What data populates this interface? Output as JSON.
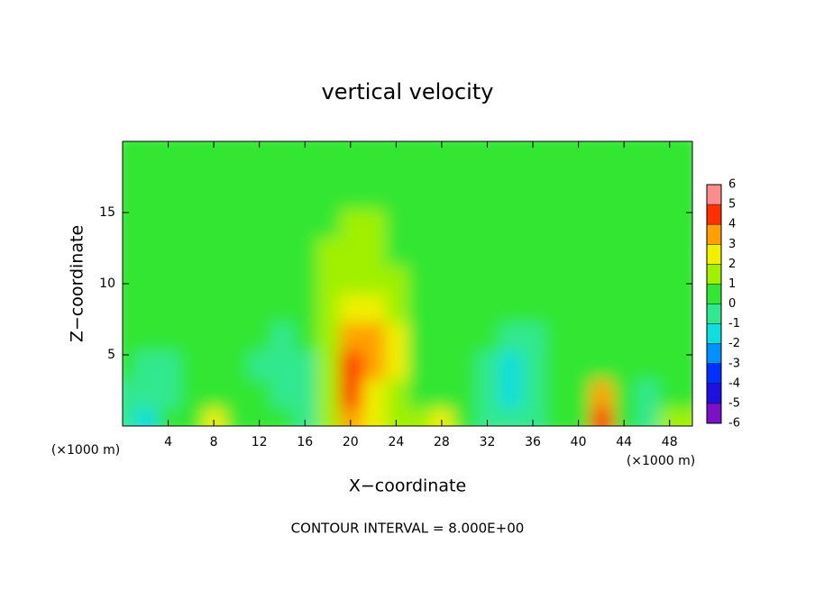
{
  "chart_data": {
    "type": "contour",
    "title": "vertical velocity",
    "xlabel": "X−coordinate",
    "ylabel": "Z−coordinate",
    "x_unit": "(×1000 m)",
    "x_unit_right": "(×1000 m)",
    "footer": "CONTOUR INTERVAL = 8.000E+00",
    "xlim": [
      0,
      50
    ],
    "ylim": [
      0,
      20
    ],
    "xticks": [
      4,
      8,
      12,
      16,
      20,
      24,
      28,
      32,
      36,
      40,
      44,
      48
    ],
    "yticks": [
      5,
      10,
      15
    ],
    "x": [
      1,
      3,
      5,
      7,
      9,
      11,
      13,
      15,
      17,
      19,
      21,
      23,
      25,
      27,
      29,
      31,
      33,
      35,
      37,
      39,
      41,
      43,
      45,
      47,
      49
    ],
    "z": [
      1,
      3,
      5,
      7,
      9,
      11,
      13,
      15,
      17,
      19
    ],
    "values": [
      [
        -1,
        -1.5,
        0,
        0.5,
        2,
        0.5,
        0.5,
        0,
        -1,
        1,
        3.5,
        2,
        1,
        1.5,
        2.5,
        0,
        -0.5,
        -1,
        -1,
        0,
        0,
        4,
        0.5,
        -1,
        1.5
      ],
      [
        -0.5,
        -1,
        -0.5,
        0.5,
        0.5,
        0,
        0,
        -1,
        -1,
        1,
        4,
        2,
        1,
        0.5,
        0.5,
        0,
        -0.5,
        -1.5,
        -1,
        0,
        0,
        3,
        0,
        -0.5,
        0.5
      ],
      [
        0,
        -0.5,
        -0.5,
        0,
        0,
        0,
        -0.5,
        -1,
        -0.5,
        1.5,
        4,
        3,
        2,
        0.5,
        0,
        0,
        -0.5,
        -1.5,
        -1,
        0,
        0,
        0.5,
        0,
        0,
        0
      ],
      [
        0,
        0,
        0,
        0,
        0,
        0,
        0,
        -0.5,
        0,
        1.5,
        3,
        3,
        2,
        0.5,
        0,
        0,
        0,
        -0.5,
        -0.5,
        0,
        0,
        0,
        0,
        0,
        0
      ],
      [
        0,
        0,
        0,
        0,
        0,
        0,
        0,
        0,
        0.5,
        1,
        2,
        2,
        1.5,
        0.5,
        0,
        0,
        0,
        0,
        0,
        0,
        0,
        0,
        0,
        0,
        0
      ],
      [
        0,
        0,
        0,
        0,
        0,
        0,
        0,
        0,
        0.5,
        1,
        1,
        1,
        1,
        0.5,
        0.5,
        0,
        0,
        0,
        0,
        0,
        0,
        0,
        0,
        0,
        0
      ],
      [
        0,
        0,
        0,
        0,
        0,
        0,
        0,
        0,
        0.5,
        1,
        1,
        1,
        0.5,
        0.5,
        0,
        0,
        0,
        0,
        0,
        0,
        0,
        0,
        0,
        0,
        0
      ],
      [
        0,
        0,
        0,
        0,
        0,
        0,
        0,
        0,
        0.5,
        0.5,
        1,
        1,
        0.5,
        0.5,
        0,
        0,
        0,
        0,
        0,
        0,
        0,
        0,
        0,
        0,
        0
      ],
      [
        0,
        0,
        0,
        0,
        0,
        0,
        0,
        0,
        0,
        0.5,
        0.5,
        0.5,
        0.5,
        0,
        0,
        0,
        0,
        0,
        0,
        0,
        0,
        0,
        0,
        0,
        0
      ],
      [
        0,
        0,
        0,
        0,
        0,
        0,
        0,
        0,
        0,
        0,
        0,
        0,
        0,
        0,
        0,
        0,
        0,
        0,
        0,
        0,
        0,
        0,
        0,
        0,
        0
      ]
    ],
    "colorbar": {
      "ticks": [
        -6,
        -5,
        -4,
        -3,
        -2,
        -1,
        0,
        1,
        2,
        3,
        4,
        5,
        6
      ],
      "colors": [
        "#7a10c8",
        "#2010e0",
        "#0030ff",
        "#0090ff",
        "#10dede",
        "#30e890",
        "#33e633",
        "#a0f000",
        "#f0f000",
        "#ffa000",
        "#ff3000",
        "#ff8c8c"
      ]
    }
  }
}
